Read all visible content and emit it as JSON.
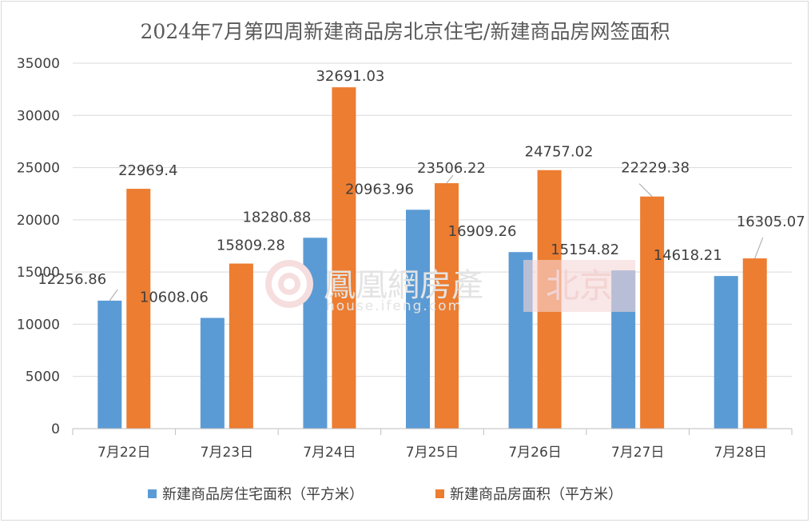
{
  "chart_data": {
    "type": "bar",
    "title": "2024年7月第四周新建商品房北京住宅/新建商品房网签面积",
    "categories": [
      "7月22日",
      "7月23日",
      "7月24日",
      "7月25日",
      "7月26日",
      "7月27日",
      "7月28日"
    ],
    "series": [
      {
        "name": "新建商品房住宅面积（平方米）",
        "color": "#5b9bd5",
        "values": [
          12256.86,
          10608.06,
          18280.88,
          20963.96,
          16909.26,
          15154.82,
          14618.21
        ],
        "labels": [
          "12256.86",
          "10608.06",
          "18280.88",
          "20963.96",
          "16909.26",
          "15154.82",
          "14618.21"
        ]
      },
      {
        "name": "新建商品房面积（平方米）",
        "color": "#ed7d31",
        "values": [
          22969.4,
          15809.28,
          32691.03,
          23506.22,
          24757.02,
          22229.38,
          16305.07
        ],
        "labels": [
          "22969.4",
          "15809.28",
          "32691.03",
          "23506.22",
          "24757.02",
          "22229.38",
          "16305.07"
        ]
      }
    ],
    "yticks": [
      "0",
      "5000",
      "10000",
      "15000",
      "20000",
      "25000",
      "30000",
      "35000"
    ],
    "ylim": [
      0,
      35000
    ],
    "grid": true,
    "legend_position": "bottom"
  },
  "watermark": {
    "brand": "鳳凰網房產",
    "url": "house.ifeng.com",
    "city": "北京"
  }
}
